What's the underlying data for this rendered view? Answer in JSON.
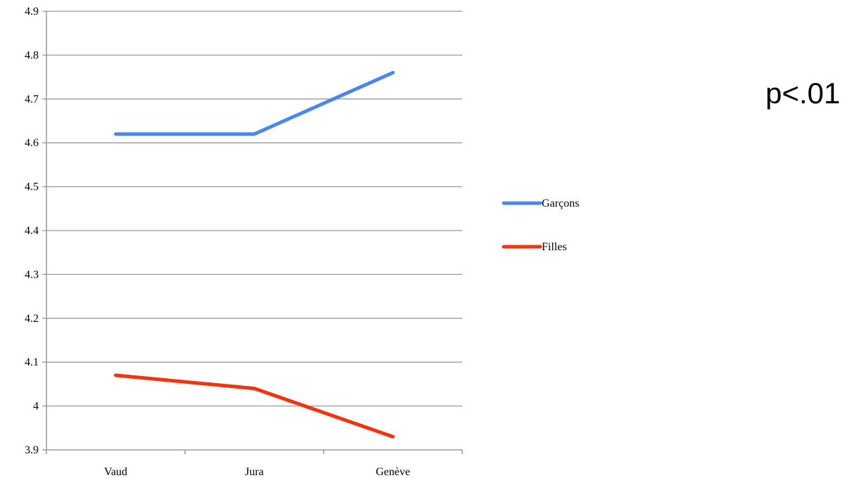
{
  "chart_data": {
    "type": "line",
    "title": "",
    "xlabel": "",
    "ylabel": "",
    "categories": [
      "Vaud",
      "Jura",
      "Genève"
    ],
    "ylim": [
      3.9,
      4.9
    ],
    "yticks": [
      "4.9",
      "4.8",
      "4.7",
      "4.6",
      "4.5",
      "4.4",
      "4.3",
      "4.2",
      "4.1",
      "4",
      "3.9"
    ],
    "grid": true,
    "legend_position": "right",
    "series": [
      {
        "name": "Garçons",
        "color": "#4a86f2",
        "values": [
          4.62,
          4.62,
          4.76
        ]
      },
      {
        "name": "Filles",
        "color": "#f5320d",
        "values": [
          4.07,
          4.04,
          3.93
        ]
      }
    ],
    "annotation": "p<.01"
  }
}
